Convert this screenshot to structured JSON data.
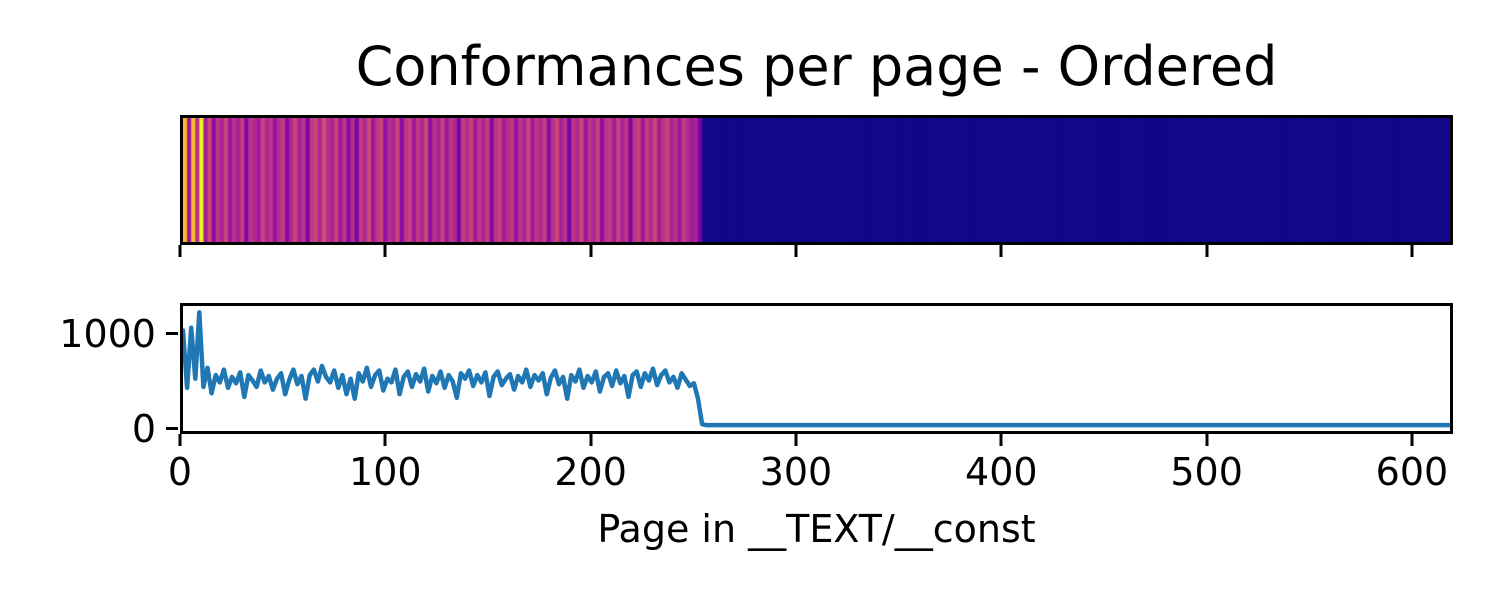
{
  "title": "Conformances per page - Ordered",
  "colors": {
    "line": "#1f77b4",
    "axes": "#000000",
    "background": "#ffffff",
    "heatmap_zero": "#0d0887"
  },
  "chart_data": [
    {
      "type": "heatmap",
      "title": "Conformances per page - Ordered",
      "orientation": "horizontal-strip",
      "colormap": "plasma",
      "colormap_stops": [
        [
          0.0,
          "#0d0887"
        ],
        [
          0.1,
          "#41049d"
        ],
        [
          0.2,
          "#6a00a8"
        ],
        [
          0.3,
          "#8f0da4"
        ],
        [
          0.4,
          "#b12a90"
        ],
        [
          0.5,
          "#cc4778"
        ],
        [
          0.6,
          "#e16462"
        ],
        [
          0.7,
          "#f2844b"
        ],
        [
          0.8,
          "#fca636"
        ],
        [
          0.9,
          "#fcce25"
        ],
        [
          1.0,
          "#f0f921"
        ]
      ],
      "vmin": 0,
      "vmax": 1250,
      "x_range": [
        0,
        620
      ],
      "xticks": [
        0,
        100,
        200,
        300,
        400,
        500,
        600
      ],
      "tick_labels_visible": false,
      "data_note": "colors encode the same per-page conformance counts as the line chart below (chart_data[1]); pages above ~252 are zero (dark blue)"
    },
    {
      "type": "line",
      "xlabel": "Page in __TEXT/__const",
      "xticks": [
        0,
        100,
        200,
        300,
        400,
        500,
        600
      ],
      "yticks": [
        0,
        1000
      ],
      "xlim": [
        0,
        620
      ],
      "ylim": [
        -55,
        1320
      ],
      "grid": false,
      "legend": "none",
      "line_color": "#1f77b4",
      "x_start": 0,
      "x_step": 2,
      "values": [
        1050,
        420,
        1080,
        520,
        1250,
        430,
        640,
        360,
        560,
        480,
        620,
        420,
        540,
        470,
        590,
        320,
        560,
        500,
        430,
        610,
        480,
        550,
        400,
        520,
        580,
        350,
        510,
        620,
        460,
        550,
        300,
        560,
        620,
        490,
        660,
        540,
        480,
        610,
        420,
        560,
        350,
        520,
        300,
        580,
        490,
        640,
        430,
        560,
        610,
        390,
        520,
        480,
        620,
        350,
        540,
        600,
        430,
        570,
        490,
        630,
        380,
        550,
        470,
        600,
        420,
        560,
        490,
        310,
        580,
        520,
        610,
        440,
        560,
        480,
        590,
        330,
        540,
        600,
        450,
        520,
        570,
        400,
        550,
        480,
        620,
        430,
        560,
        500,
        580,
        350,
        530,
        610,
        460,
        540,
        300,
        560,
        490,
        620,
        420,
        550,
        480,
        600,
        380,
        540,
        580,
        440,
        610,
        470,
        550,
        320,
        560,
        600,
        430,
        580,
        500,
        630,
        450,
        560,
        610,
        480,
        540,
        420,
        580,
        510,
        440,
        470,
        300,
        20
      ],
      "tail": {
        "from": 256,
        "to": 620,
        "value": 10
      }
    }
  ]
}
